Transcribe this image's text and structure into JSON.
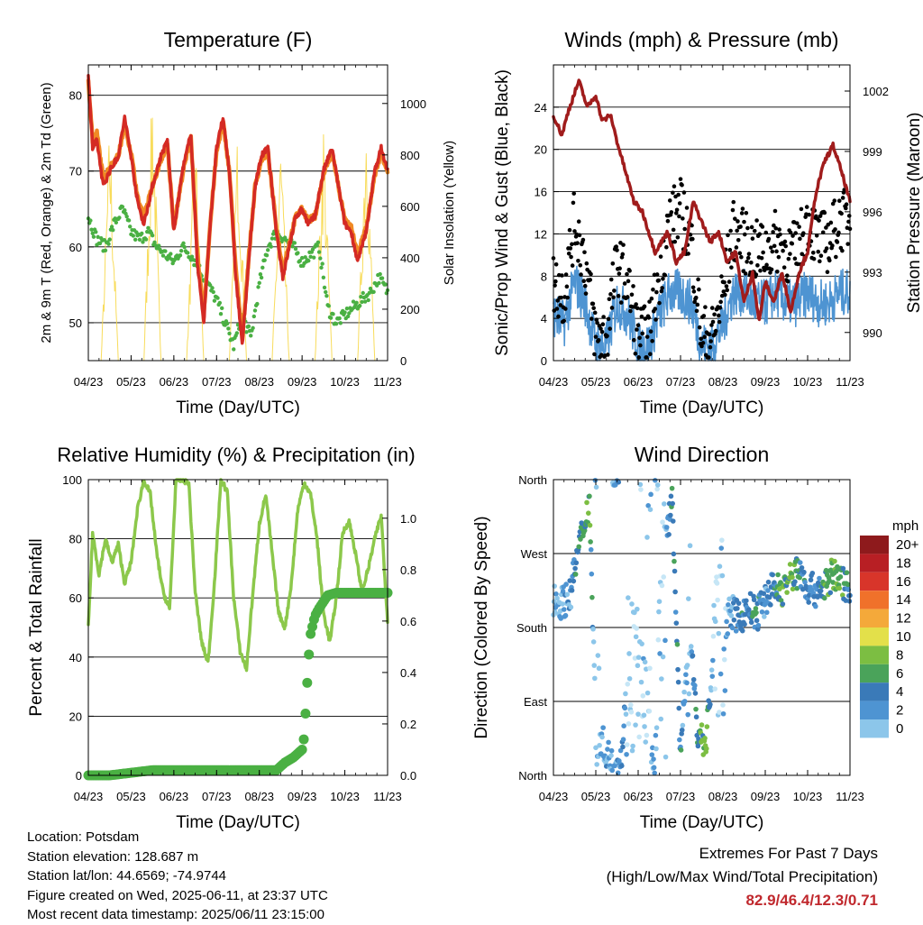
{
  "panels": {
    "temperature": {
      "title": "Temperature (F)",
      "ylabel_left": "2m & 9m T (Red, Orange) & 2m Td (Green)",
      "ylabel_right": "Solar Insolation (Yellow)",
      "xlabel": "Time (Day/UTC)"
    },
    "winds": {
      "title": "Winds (mph) & Pressure (mb)",
      "ylabel_left": "Sonic/Prop Wind & Gust (Blue, Black)",
      "ylabel_right": "Station Pressure (Maroon)",
      "xlabel": "Time (Day/UTC)"
    },
    "humidity": {
      "title": "Relative Humidity (%) & Precipitation (in)",
      "ylabel_left": "Percent & Total Rainfall",
      "xlabel": "Time (Day/UTC)"
    },
    "direction": {
      "title": "Wind Direction",
      "ylabel_left": "Direction (Colored By Speed)",
      "xlabel": "Time (Day/UTC)",
      "legend_title": "mph",
      "legend_labels": [
        "20+",
        "18",
        "16",
        "14",
        "12",
        "10",
        "8",
        "6",
        "4",
        "2",
        "0"
      ]
    }
  },
  "footer": {
    "location": "Location: Potsdam",
    "elevation": "Station elevation: 128.687 m",
    "latlon": "Station lat/lon: 44.6569; -74.9744",
    "created": "Figure created on Wed, 2025-06-11, at 23:37 UTC",
    "latest": "Most recent data timestamp: 2025/06/11 23:15:00"
  },
  "extremes": {
    "line1": "Extremes For Past 7 Days",
    "line2": "(High/Low/Max Wind/Total Precipitation)",
    "values": "82.9/46.4/12.3/0.71"
  },
  "colors": {
    "temp2m": "#d42a24",
    "temp9m": "#f08a24",
    "dewpoint": "#4ab043",
    "solar": "#f7d84a",
    "wind": "#4e94d2",
    "gust": "#000000",
    "pressure": "#a01c1c",
    "rh": "#8cc84b",
    "precip": "#4ab043",
    "speed_scale": [
      "#c6e6f6",
      "#8cc6ea",
      "#4e94d2",
      "#3a7ab8",
      "#4aa35a",
      "#7cbe42",
      "#e3e04a",
      "#f4a93a",
      "#f0712a",
      "#d8352a",
      "#b81f24",
      "#8e1a1c"
    ]
  },
  "chart_data": [
    {
      "type": "line",
      "title": "Temperature (F)",
      "xlabel": "Time (Day/UTC)",
      "ylabel": "2m & 9m T (Red, Orange) & 2m Td (Green)",
      "y2label": "Solar Insolation (Yellow)",
      "x_ticks": [
        "04/23",
        "05/23",
        "06/23",
        "07/23",
        "08/23",
        "09/23",
        "10/23",
        "11/23"
      ],
      "xlim": [
        0,
        7
      ],
      "ylim": [
        45,
        84
      ],
      "y_ticks": [
        50,
        60,
        70,
        80
      ],
      "y2lim": [
        0,
        1150
      ],
      "y2_ticks": [
        0,
        200,
        400,
        600,
        800,
        1000
      ],
      "grid": "horizontal",
      "series": [
        {
          "name": "2m T",
          "x": [
            0,
            0.1,
            0.2,
            0.35,
            0.5,
            0.7,
            0.85,
            1.0,
            1.15,
            1.3,
            1.5,
            1.7,
            1.85,
            2.0,
            2.2,
            2.4,
            2.55,
            2.7,
            2.85,
            3.0,
            3.15,
            3.3,
            3.45,
            3.6,
            3.75,
            3.9,
            4.05,
            4.2,
            4.4,
            4.55,
            4.7,
            4.85,
            5.0,
            5.15,
            5.3,
            5.5,
            5.7,
            5.85,
            6.0,
            6.15,
            6.3,
            6.5,
            6.7,
            6.85,
            7.0
          ],
          "values": [
            83,
            73,
            74,
            68,
            70,
            72,
            77,
            72,
            66,
            63,
            68,
            72,
            74,
            62,
            70,
            75,
            58,
            50,
            63,
            73,
            77,
            70,
            56,
            47,
            58,
            68,
            72,
            73,
            62,
            56,
            60,
            64,
            65,
            63,
            64,
            70,
            73,
            68,
            63,
            62,
            58,
            62,
            70,
            73,
            70
          ]
        },
        {
          "name": "9m T",
          "x": [
            0,
            0.1,
            0.2,
            0.35,
            0.5,
            0.7,
            0.85,
            1.0,
            1.15,
            1.3,
            1.5,
            1.7,
            1.85,
            2.0,
            2.2,
            2.4,
            2.55,
            2.7,
            2.85,
            3.0,
            3.15,
            3.3,
            3.45,
            3.6,
            3.75,
            3.9,
            4.05,
            4.2,
            4.4,
            4.55,
            4.7,
            4.85,
            5.0,
            5.15,
            5.3,
            5.5,
            5.7,
            5.85,
            6.0,
            6.15,
            6.3,
            6.5,
            6.7,
            6.85,
            7.0
          ],
          "values": [
            82,
            74,
            75,
            69,
            70.5,
            72,
            76,
            72.5,
            66.5,
            64,
            68,
            71.5,
            73.5,
            62.5,
            69.5,
            74.5,
            59,
            51,
            63,
            72.5,
            76.5,
            70,
            57,
            48,
            58.5,
            68,
            71.5,
            72.5,
            62.5,
            57,
            60.5,
            64,
            65,
            63.5,
            64,
            69.5,
            72.5,
            68,
            63.5,
            62.5,
            59,
            62.5,
            69.5,
            72.5,
            70
          ]
        },
        {
          "name": "2m Td",
          "x": [
            0,
            0.2,
            0.4,
            0.6,
            0.8,
            1.0,
            1.2,
            1.4,
            1.6,
            1.8,
            2.0,
            2.2,
            2.4,
            2.6,
            2.8,
            3.0,
            3.2,
            3.4,
            3.6,
            3.8,
            4.0,
            4.2,
            4.4,
            4.6,
            4.8,
            5.0,
            5.2,
            5.4,
            5.6,
            5.8,
            6.0,
            6.2,
            6.4,
            6.6,
            6.8,
            7.0
          ],
          "values": [
            64,
            61,
            60,
            63,
            65,
            62,
            61,
            62,
            60,
            59,
            58,
            60,
            59,
            57,
            55,
            53,
            50,
            47,
            51,
            48,
            55,
            60,
            62,
            61,
            60,
            58,
            59,
            60,
            52,
            50,
            51,
            52,
            53,
            54,
            56,
            54
          ]
        },
        {
          "name": "Solar Insolation",
          "axis": "y2",
          "x": [
            0,
            0.3,
            0.5,
            0.7,
            1.0,
            1.3,
            1.5,
            1.7,
            2.0,
            2.3,
            2.5,
            2.7,
            3.0,
            3.3,
            3.5,
            3.7,
            4.0,
            4.3,
            4.5,
            4.7,
            5.0,
            5.3,
            5.5,
            5.7,
            6.0,
            6.3,
            6.5,
            6.7,
            7.0
          ],
          "values": [
            0,
            0,
            950,
            0,
            0,
            0,
            1130,
            0,
            0,
            0,
            930,
            0,
            0,
            0,
            950,
            0,
            0,
            0,
            900,
            0,
            0,
            0,
            960,
            0,
            0,
            0,
            1050,
            0,
            0
          ]
        }
      ]
    },
    {
      "type": "line",
      "title": "Winds (mph) & Pressure (mb)",
      "xlabel": "Time (Day/UTC)",
      "ylabel": "Sonic/Prop Wind & Gust (Blue, Black)",
      "y2label": "Station Pressure (Maroon)",
      "x_ticks": [
        "04/23",
        "05/23",
        "06/23",
        "07/23",
        "08/23",
        "09/23",
        "10/23",
        "11/23"
      ],
      "xlim": [
        0,
        7
      ],
      "ylim": [
        0,
        28
      ],
      "y_ticks": [
        0,
        4,
        8,
        12,
        16,
        20,
        24
      ],
      "y2lim": [
        988.6,
        1003.3
      ],
      "y2_ticks": [
        990,
        993,
        996,
        999,
        1002
      ],
      "grid": "horizontal",
      "series": [
        {
          "name": "Wind",
          "x": [
            0,
            0.25,
            0.5,
            0.75,
            1.0,
            1.25,
            1.5,
            1.75,
            2.0,
            2.25,
            2.5,
            2.75,
            3.0,
            3.25,
            3.5,
            3.75,
            4.0,
            4.25,
            4.5,
            4.75,
            5.0,
            5.25,
            5.5,
            5.75,
            6.0,
            6.25,
            6.5,
            6.75,
            7.0
          ],
          "values": [
            4,
            3,
            7,
            5,
            1,
            1,
            5,
            4,
            1,
            1,
            4,
            6,
            6,
            5,
            1,
            1,
            3,
            6,
            6,
            5,
            5,
            6,
            5,
            5,
            6,
            5,
            5,
            6,
            6
          ]
        },
        {
          "name": "Gust",
          "x": [
            0,
            0.25,
            0.5,
            0.75,
            1.0,
            1.25,
            1.5,
            1.75,
            2.0,
            2.25,
            2.5,
            2.75,
            3.0,
            3.25,
            3.5,
            3.75,
            4.0,
            4.25,
            4.5,
            4.75,
            5.0,
            5.25,
            5.5,
            5.75,
            6.0,
            6.25,
            6.5,
            6.75,
            7.0
          ],
          "values": [
            7,
            6,
            13,
            9,
            2,
            2,
            9,
            7,
            2,
            2,
            8,
            13,
            14,
            11,
            2,
            2,
            6,
            12,
            11,
            10,
            10,
            11,
            10,
            10,
            13,
            11,
            11,
            13,
            13
          ]
        },
        {
          "name": "Station Pressure",
          "axis": "y2",
          "x": [
            0,
            0.2,
            0.35,
            0.6,
            0.8,
            1.0,
            1.15,
            1.35,
            1.5,
            1.7,
            1.9,
            2.1,
            2.4,
            2.7,
            2.9,
            3.1,
            3.3,
            3.5,
            3.7,
            3.9,
            4.1,
            4.3,
            4.5,
            4.7,
            4.85,
            5.0,
            5.2,
            5.4,
            5.6,
            5.8,
            6.0,
            6.2,
            6.4,
            6.6,
            6.8,
            7.0
          ],
          "values": [
            1000.8,
            999.8,
            1001,
            1002.5,
            1001.2,
            1001.8,
            1000.5,
            1000.8,
            999.5,
            998,
            996.5,
            996,
            994,
            995,
            993.5,
            994,
            996.5,
            995.5,
            994.5,
            995,
            993.5,
            994,
            991.5,
            993,
            990.5,
            992.5,
            991.5,
            993,
            991,
            993,
            994,
            997,
            998.5,
            999.3,
            998,
            996.5
          ]
        }
      ]
    },
    {
      "type": "line",
      "title": "Relative Humidity (%) & Precipitation (in)",
      "xlabel": "Time (Day/UTC)",
      "ylabel": "Percent & Total Rainfall",
      "x_ticks": [
        "04/23",
        "05/23",
        "06/23",
        "07/23",
        "08/23",
        "09/23",
        "10/23",
        "11/23"
      ],
      "xlim": [
        0,
        7
      ],
      "ylim": [
        0,
        100
      ],
      "y_ticks": [
        0,
        20,
        40,
        60,
        80,
        100
      ],
      "y2lim": [
        0,
        1.15
      ],
      "y2_ticks": [
        0.0,
        0.2,
        0.4,
        0.6,
        0.8,
        1.0
      ],
      "grid": "horizontal",
      "series": [
        {
          "name": "Relative Humidity",
          "x": [
            0,
            0.1,
            0.25,
            0.4,
            0.55,
            0.7,
            0.85,
            1.0,
            1.15,
            1.3,
            1.45,
            1.6,
            1.75,
            1.9,
            2.05,
            2.2,
            2.35,
            2.5,
            2.65,
            2.8,
            2.95,
            3.1,
            3.25,
            3.4,
            3.55,
            3.7,
            3.85,
            4.0,
            4.15,
            4.3,
            4.45,
            4.6,
            4.75,
            4.9,
            5.05,
            5.2,
            5.35,
            5.5,
            5.65,
            5.8,
            5.95,
            6.1,
            6.25,
            6.4,
            6.55,
            6.7,
            6.85,
            7.0
          ],
          "values": [
            50,
            82,
            68,
            80,
            72,
            78,
            65,
            72,
            90,
            100,
            95,
            75,
            62,
            56,
            100,
            100,
            99,
            62,
            45,
            38,
            65,
            100,
            96,
            60,
            42,
            36,
            62,
            85,
            95,
            75,
            55,
            50,
            65,
            90,
            99,
            95,
            80,
            55,
            45,
            60,
            82,
            86,
            75,
            62,
            70,
            80,
            88,
            52
          ]
        },
        {
          "name": "Total Rainfall",
          "axis": "y2",
          "x": [
            0,
            0.5,
            1.0,
            1.5,
            2.0,
            2.5,
            3.0,
            3.5,
            4.0,
            4.4,
            4.6,
            4.8,
            5.0,
            5.05,
            5.1,
            5.15,
            5.2,
            5.3,
            5.4,
            5.6,
            5.8,
            6.0,
            6.5,
            7.0
          ],
          "values": [
            0.0,
            0.0,
            0.01,
            0.02,
            0.02,
            0.02,
            0.02,
            0.02,
            0.02,
            0.02,
            0.05,
            0.07,
            0.1,
            0.15,
            0.3,
            0.45,
            0.55,
            0.62,
            0.65,
            0.7,
            0.71,
            0.71,
            0.71,
            0.71
          ]
        }
      ]
    },
    {
      "type": "scatter",
      "title": "Wind Direction",
      "xlabel": "Time (Day/UTC)",
      "ylabel": "Direction (Colored By Speed)",
      "x_ticks": [
        "04/23",
        "05/23",
        "06/23",
        "07/23",
        "08/23",
        "09/23",
        "10/23",
        "11/23"
      ],
      "xlim": [
        0,
        7
      ],
      "y_ticks": [
        "North",
        "East",
        "South",
        "West",
        "North"
      ],
      "ylim": [
        0,
        360
      ],
      "grid": "horizontal",
      "color_scale": {
        "label": "mph",
        "min": 0,
        "max": 20
      },
      "series": [
        {
          "name": "Wind Direction",
          "x": [
            0,
            0.2,
            0.4,
            0.55,
            0.7,
            0.85,
            1.0,
            1.2,
            1.4,
            1.6,
            1.8,
            2.0,
            2.2,
            2.4,
            2.6,
            2.8,
            3.0,
            3.2,
            3.4,
            3.6,
            3.8,
            4.0,
            4.2,
            4.4,
            4.6,
            4.8,
            5.0,
            5.2,
            5.4,
            5.6,
            5.8,
            6.0,
            6.2,
            6.4,
            6.6,
            6.8,
            7.0
          ],
          "values": [
            215,
            210,
            220,
            265,
            300,
            335,
            60,
            35,
            10,
            20,
            150,
            110,
            30,
            15,
            250,
            350,
            15,
            200,
            50,
            40,
            160,
            180,
            200,
            190,
            205,
            195,
            215,
            230,
            225,
            240,
            250,
            228,
            225,
            230,
            245,
            235,
            230
          ],
          "speeds": [
            3,
            3,
            4,
            6,
            7,
            8,
            2,
            3,
            4,
            5,
            1,
            1,
            2,
            3,
            1,
            7,
            6,
            1,
            8,
            9,
            1,
            2,
            4,
            6,
            5,
            7,
            4,
            6,
            8,
            9,
            7,
            5,
            5,
            7,
            9,
            8,
            6
          ]
        }
      ]
    }
  ]
}
